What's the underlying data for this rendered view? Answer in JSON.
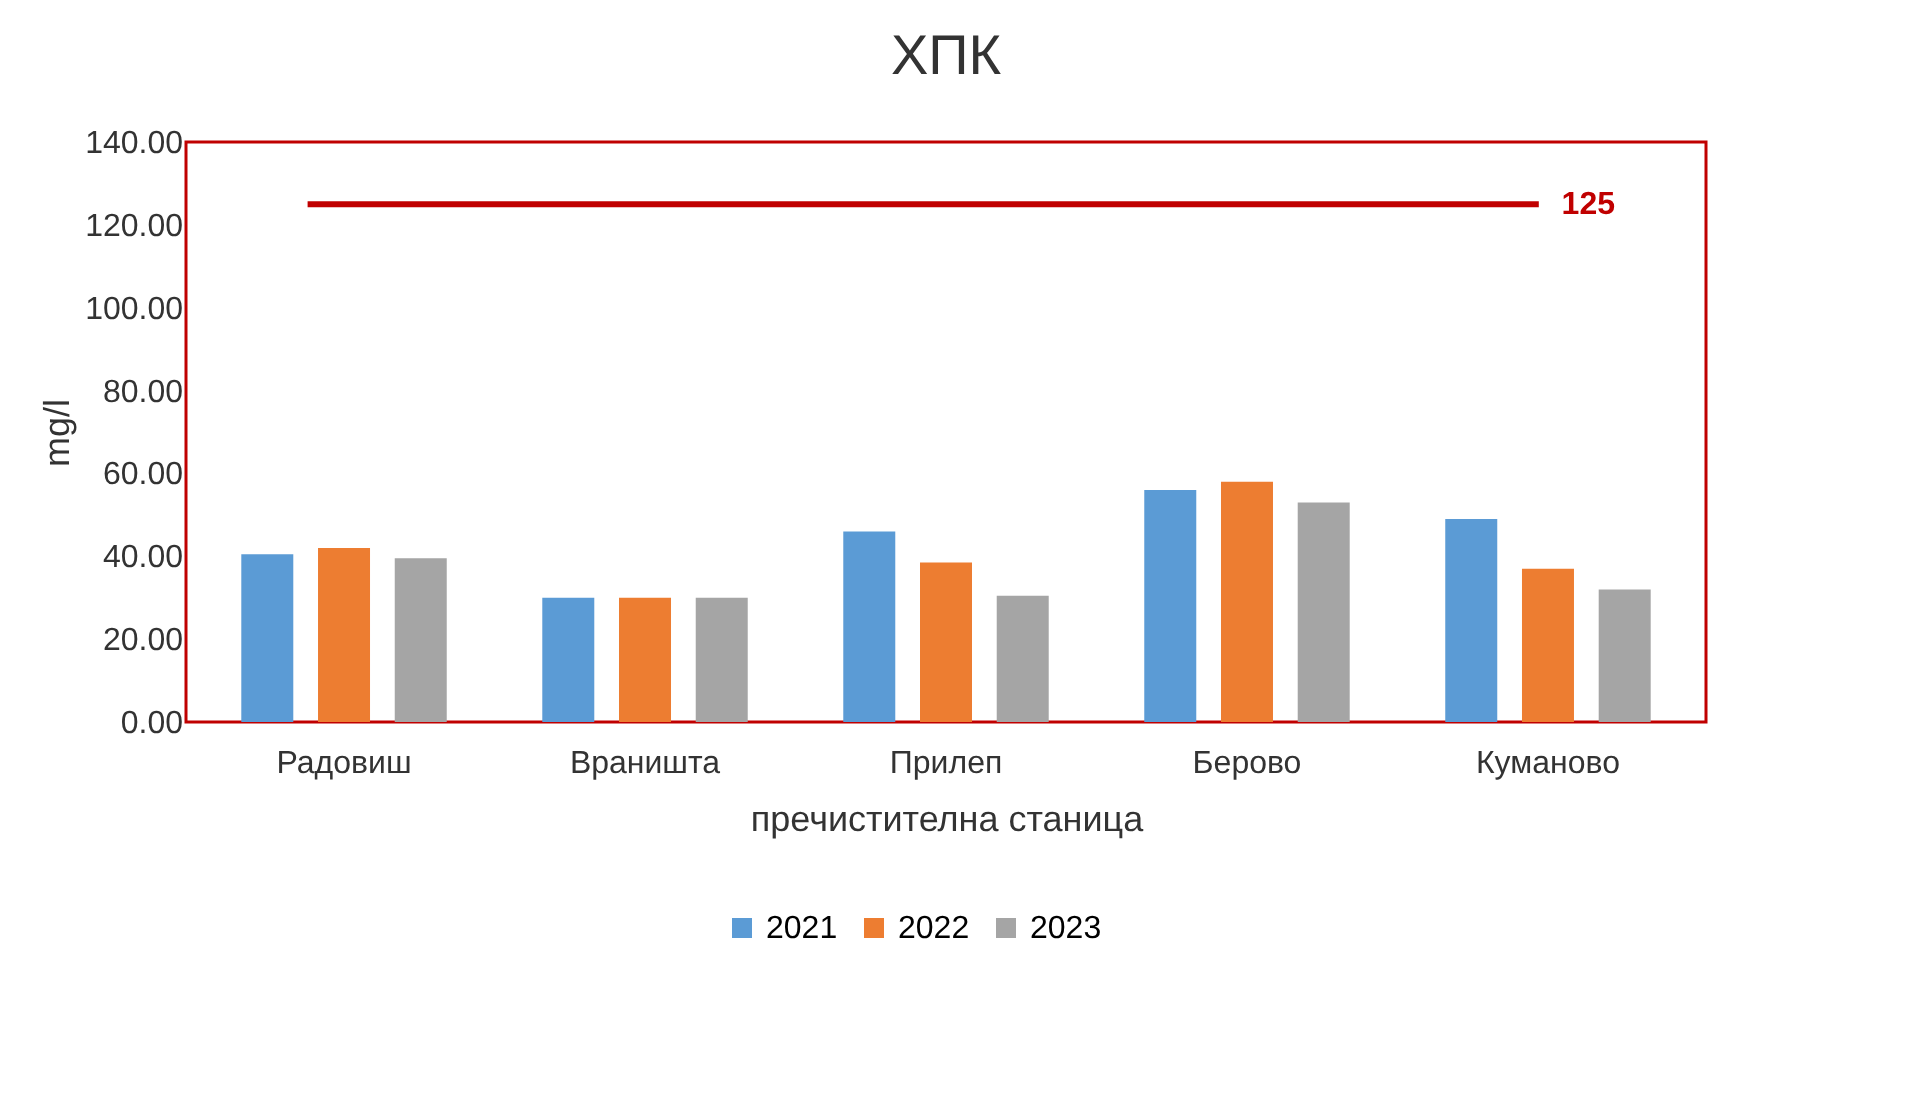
{
  "chart_data": {
    "type": "bar",
    "title": "ХПК",
    "xlabel": "пречистителна станица",
    "ylabel": "mg/l",
    "categories": [
      "Радовиш",
      "Враништа",
      "Прилеп",
      "Берово",
      "Куманово"
    ],
    "series": [
      {
        "name": "2021",
        "color": "#5b9bd5",
        "values": [
          40.5,
          30,
          46,
          56,
          49
        ]
      },
      {
        "name": "2022",
        "color": "#ed7d31",
        "values": [
          42,
          30,
          38.5,
          58,
          37
        ]
      },
      {
        "name": "2023",
        "color": "#a5a5a5",
        "values": [
          39.5,
          30,
          30.5,
          53,
          32
        ]
      }
    ],
    "ylim": [
      0,
      140
    ],
    "yticks": [
      {
        "value": 0,
        "label": "0.00"
      },
      {
        "value": 20,
        "label": "20.00"
      },
      {
        "value": 40,
        "label": "40.00"
      },
      {
        "value": 60,
        "label": "60.00"
      },
      {
        "value": 80,
        "label": "80.00"
      },
      {
        "value": 100,
        "label": "100.00"
      },
      {
        "value": 120,
        "label": "120.00"
      },
      {
        "value": 140,
        "label": "140.00"
      }
    ],
    "ref_lines": [
      {
        "axis": "y",
        "value": 125,
        "label": "125",
        "color": "#c00000"
      }
    ],
    "legend": "bottom",
    "grid": false
  }
}
